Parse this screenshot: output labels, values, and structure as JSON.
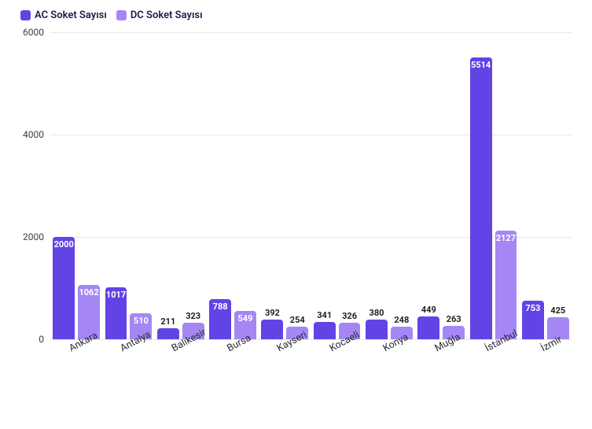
{
  "chart": {
    "type": "bar",
    "background_color": "#ffffff",
    "grid_color": "#e7e7ec",
    "axis_font_size": 12,
    "label_font_size": 11,
    "ylim_max": 6000,
    "yticks": [
      0,
      2000,
      4000,
      6000
    ],
    "inside_label_threshold": 500,
    "legend": [
      {
        "label": "AC Soket Sayısı",
        "color": "#6243e6"
      },
      {
        "label": "DC Soket Sayısı",
        "color": "#a587f3"
      }
    ],
    "categories": [
      "Ankara",
      "Antalya",
      "Balıkesir",
      "Bursa",
      "Kayseri",
      "Kocaeli",
      "Konya",
      "Muğla",
      "İstanbul",
      "İzmir"
    ],
    "series": [
      {
        "name": "AC Soket Sayısı",
        "color": "#6243e6",
        "values": [
          2000,
          1017,
          211,
          788,
          392,
          341,
          380,
          449,
          5514,
          753
        ]
      },
      {
        "name": "DC Soket Sayısı",
        "color": "#a587f3",
        "values": [
          1062,
          510,
          323,
          549,
          254,
          326,
          248,
          263,
          2127,
          425
        ]
      }
    ]
  }
}
